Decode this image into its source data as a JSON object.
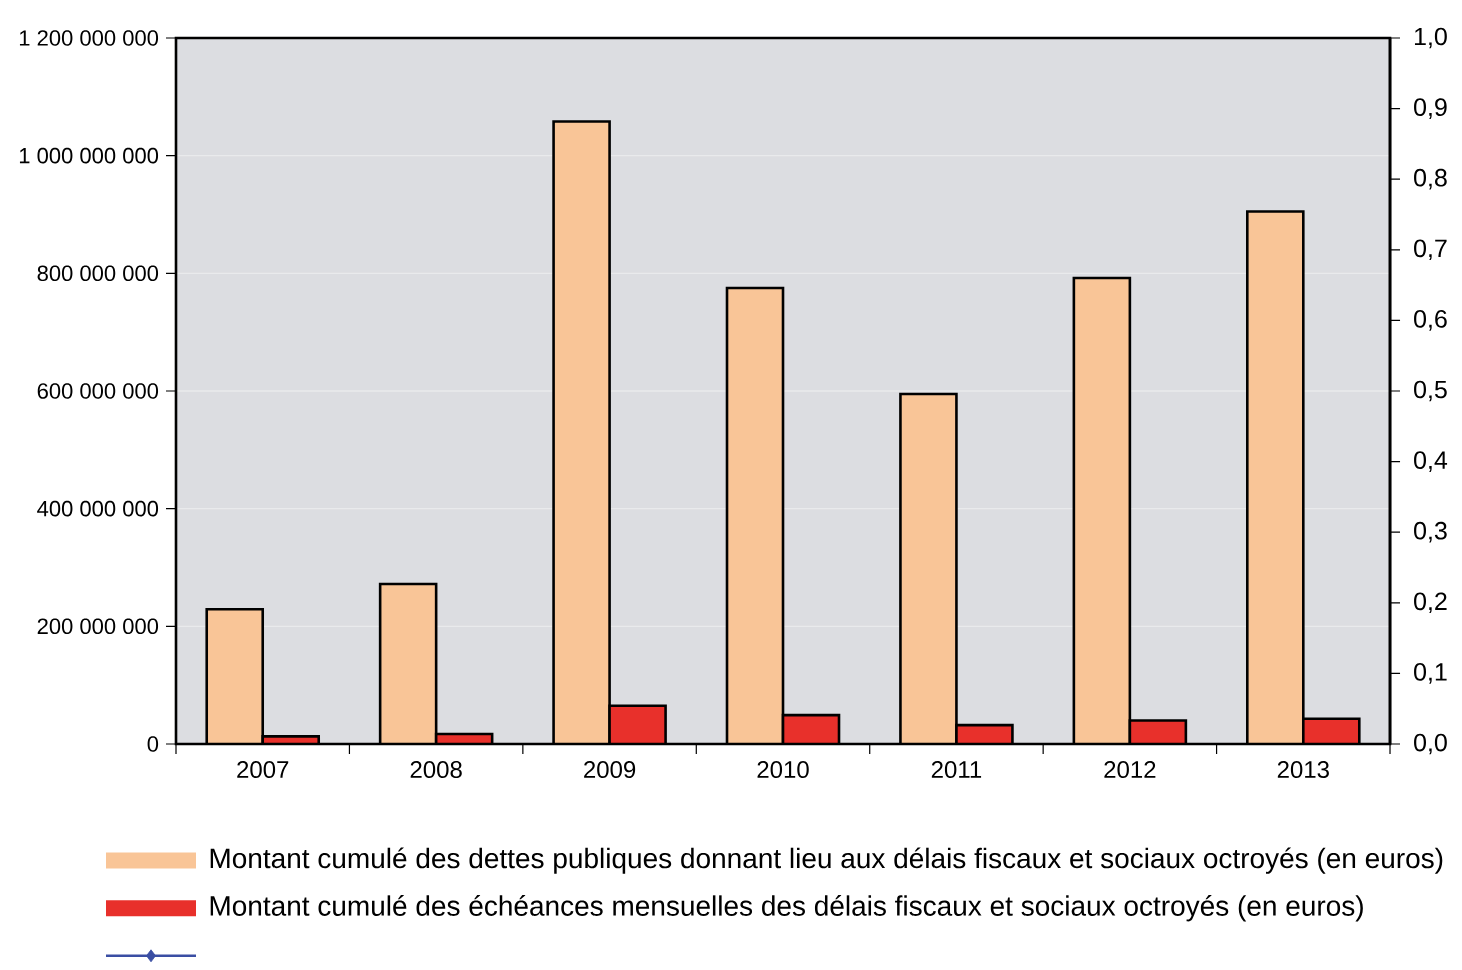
{
  "chart_data": {
    "type": "bar",
    "categories": [
      "2007",
      "2008",
      "2009",
      "2010",
      "2011",
      "2012",
      "2013"
    ],
    "series": [
      {
        "name": "Montant cumulé des dettes publiques donnant lieu aux délais fiscaux et sociaux octroyés (en euros)",
        "color": "#f9c597",
        "values": [
          229000000,
          272000000,
          1058000000,
          775000000,
          595000000,
          792000000,
          905000000
        ]
      },
      {
        "name": "Montant cumulé des échéances mensuelles des délais fiscaux et sociaux octroyés (en euros)",
        "color": "#e8302b",
        "values": [
          13000000,
          17000000,
          65000000,
          49000000,
          32000000,
          40000000,
          43000000
        ]
      },
      {
        "type": "line",
        "color": "#3a4ea3",
        "marker": "diamond",
        "values": [
          null,
          null,
          null,
          null,
          null,
          null,
          null
        ]
      }
    ],
    "ylim": [
      0,
      1200000000
    ],
    "yticks": [
      0,
      {
        "value": 200000000,
        "label": "200 000 000"
      },
      {
        "value": 400000000,
        "label": "400 000 000"
      },
      {
        "value": 600000000,
        "label": "600 000 000"
      },
      {
        "value": 800000000,
        "label": "800 000 000"
      },
      {
        "value": 1000000000,
        "label": "1 000 000 000"
      },
      {
        "value": 1200000000,
        "label": "1 200 000 000"
      }
    ],
    "y2lim": [
      0,
      1
    ],
    "y2ticks": [
      {
        "value": 0,
        "label": "0,0"
      },
      {
        "value": 0.1,
        "label": "0,1"
      },
      {
        "value": 0.2,
        "label": "0,2"
      },
      {
        "value": 0.3,
        "label": "0,3"
      },
      {
        "value": 0.4,
        "label": "0,4"
      },
      {
        "value": 0.5,
        "label": "0,5"
      },
      {
        "value": 0.6,
        "label": "0,6"
      },
      {
        "value": 0.7,
        "label": "0,7"
      },
      {
        "value": 0.8,
        "label": "0,8"
      },
      {
        "value": 0.9,
        "label": "0,9"
      },
      {
        "value": 1,
        "label": "1,0"
      }
    ],
    "grid": "y",
    "legend": "bottom"
  }
}
